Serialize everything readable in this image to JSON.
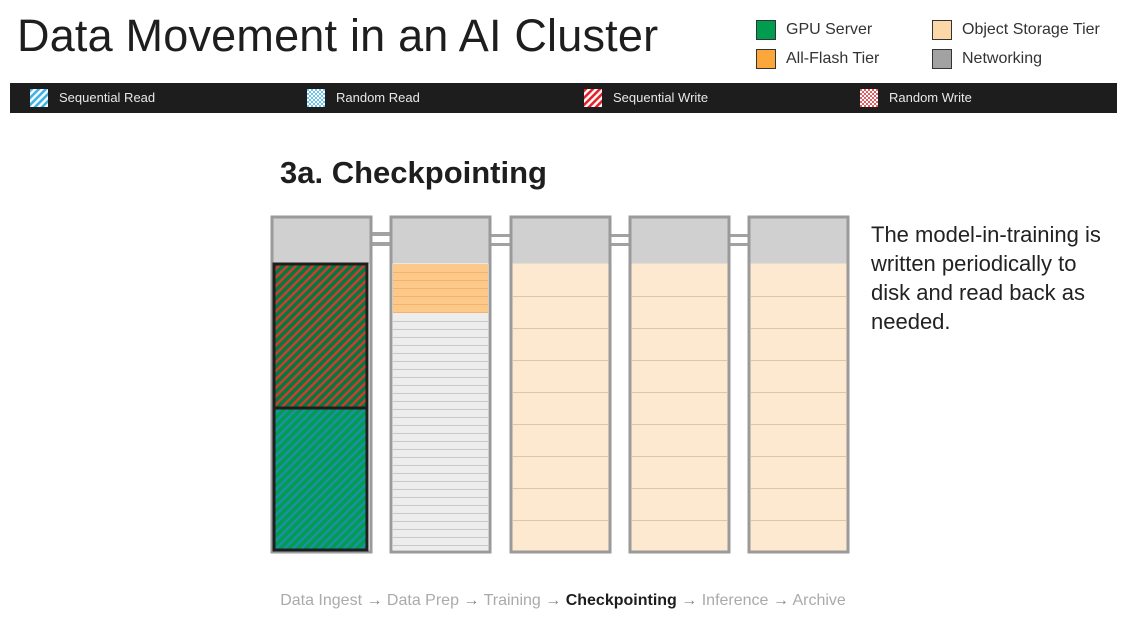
{
  "title": "Data Movement in an AI Cluster",
  "legend": [
    {
      "label": "GPU Server",
      "color": "#009c50"
    },
    {
      "label": "All-Flash Tier",
      "color": "#fba73b"
    },
    {
      "label": "Object Storage Tier",
      "color": "#fcd8a8"
    },
    {
      "label": "Networking",
      "color": "#a2a2a2"
    }
  ],
  "patterns": [
    {
      "label": "Sequential Read",
      "pattern": "diagonal-stripes",
      "color": "#3fb2e6"
    },
    {
      "label": "Random Read",
      "pattern": "dots",
      "color": "#3fb2e6"
    },
    {
      "label": "Sequential Write",
      "pattern": "diagonal-stripes",
      "color": "#e0262c"
    },
    {
      "label": "Random Write",
      "pattern": "dots",
      "color": "#e0262c"
    }
  ],
  "section_title": "3a. Checkpointing",
  "description": "The model-in-training is written periodically to disk and read back as needed.",
  "flow": {
    "steps": [
      "Data Ingest",
      "Data Prep",
      "Training",
      "Checkpointing",
      "Inference",
      "Archive"
    ],
    "active_index": 3,
    "separator": "→"
  }
}
